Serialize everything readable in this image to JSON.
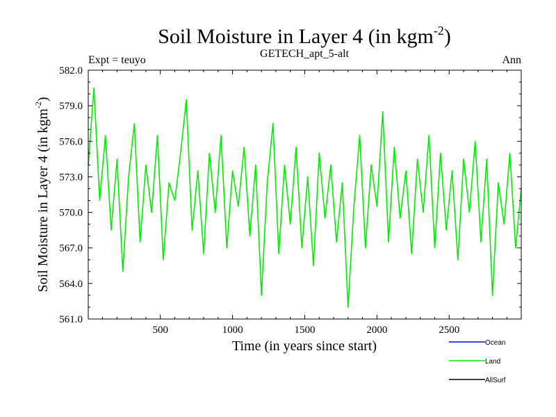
{
  "chart_data": {
    "type": "line",
    "title": "Soil Moisture in Layer 4 (in kgm",
    "title_sup": "-2",
    "title_end": ")",
    "subtitle": "GETECH_apt_5-alt",
    "left_label": "Expt = teuyo",
    "right_label": "Ann",
    "xlabel": "Time (in years since start)",
    "ylabel": "Soil Moisture in Layer 4 (in kgm",
    "ylabel_sup": "-2",
    "ylabel_end": ")",
    "xlim": [
      1,
      2999
    ],
    "ylim": [
      561.0,
      582.0
    ],
    "x_ticks": [
      500,
      1000,
      1500,
      2000,
      2500
    ],
    "x_tick_labels": [
      "500",
      "1000",
      "1500",
      "2000",
      "2500"
    ],
    "y_ticks": [
      561,
      564,
      567,
      570,
      573,
      576,
      579,
      582
    ],
    "y_tick_labels": [
      "561.0",
      "564.0",
      "567.0",
      "570.0",
      "573.0",
      "576.0",
      "579.0",
      "582.0"
    ],
    "grid": false,
    "legend_position": "bottom-right",
    "series": [
      {
        "name": "Ocean",
        "color": "#0000ff",
        "x": [],
        "values": []
      },
      {
        "name": "Land",
        "color": "#00ee00",
        "x": [
          1,
          40,
          80,
          120,
          160,
          200,
          240,
          280,
          320,
          360,
          400,
          440,
          480,
          520,
          560,
          600,
          640,
          680,
          720,
          760,
          800,
          840,
          880,
          920,
          960,
          1000,
          1040,
          1080,
          1120,
          1160,
          1200,
          1240,
          1280,
          1320,
          1360,
          1400,
          1440,
          1480,
          1520,
          1560,
          1600,
          1640,
          1680,
          1720,
          1760,
          1800,
          1840,
          1880,
          1920,
          1960,
          2000,
          2040,
          2080,
          2120,
          2160,
          2200,
          2240,
          2280,
          2320,
          2360,
          2400,
          2440,
          2480,
          2520,
          2560,
          2600,
          2640,
          2680,
          2720,
          2760,
          2800,
          2840,
          2880,
          2920,
          2960,
          2999
        ],
        "values": [
          574.0,
          580.5,
          571.0,
          576.5,
          568.5,
          574.5,
          565.0,
          573.0,
          577.5,
          567.5,
          574.0,
          570.0,
          576.5,
          566.0,
          572.5,
          571.0,
          575.0,
          579.5,
          568.5,
          573.5,
          566.5,
          575.0,
          570.0,
          576.5,
          567.0,
          573.5,
          570.5,
          575.5,
          568.0,
          574.0,
          563.0,
          572.5,
          577.5,
          566.5,
          574.0,
          569.0,
          575.5,
          567.0,
          573.0,
          565.5,
          575.0,
          569.5,
          574.0,
          567.5,
          572.5,
          562.0,
          570.5,
          576.5,
          567.0,
          574.0,
          570.5,
          578.5,
          567.5,
          575.5,
          569.5,
          573.5,
          566.5,
          574.5,
          570.0,
          576.5,
          567.0,
          575.0,
          568.5,
          573.5,
          566.0,
          574.5,
          570.0,
          576.0,
          567.5,
          574.5,
          563.0,
          572.5,
          569.0,
          575.0,
          567.0,
          572.0
        ]
      },
      {
        "name": "AllSurf",
        "color": "#000000",
        "x": [],
        "values": []
      }
    ]
  }
}
